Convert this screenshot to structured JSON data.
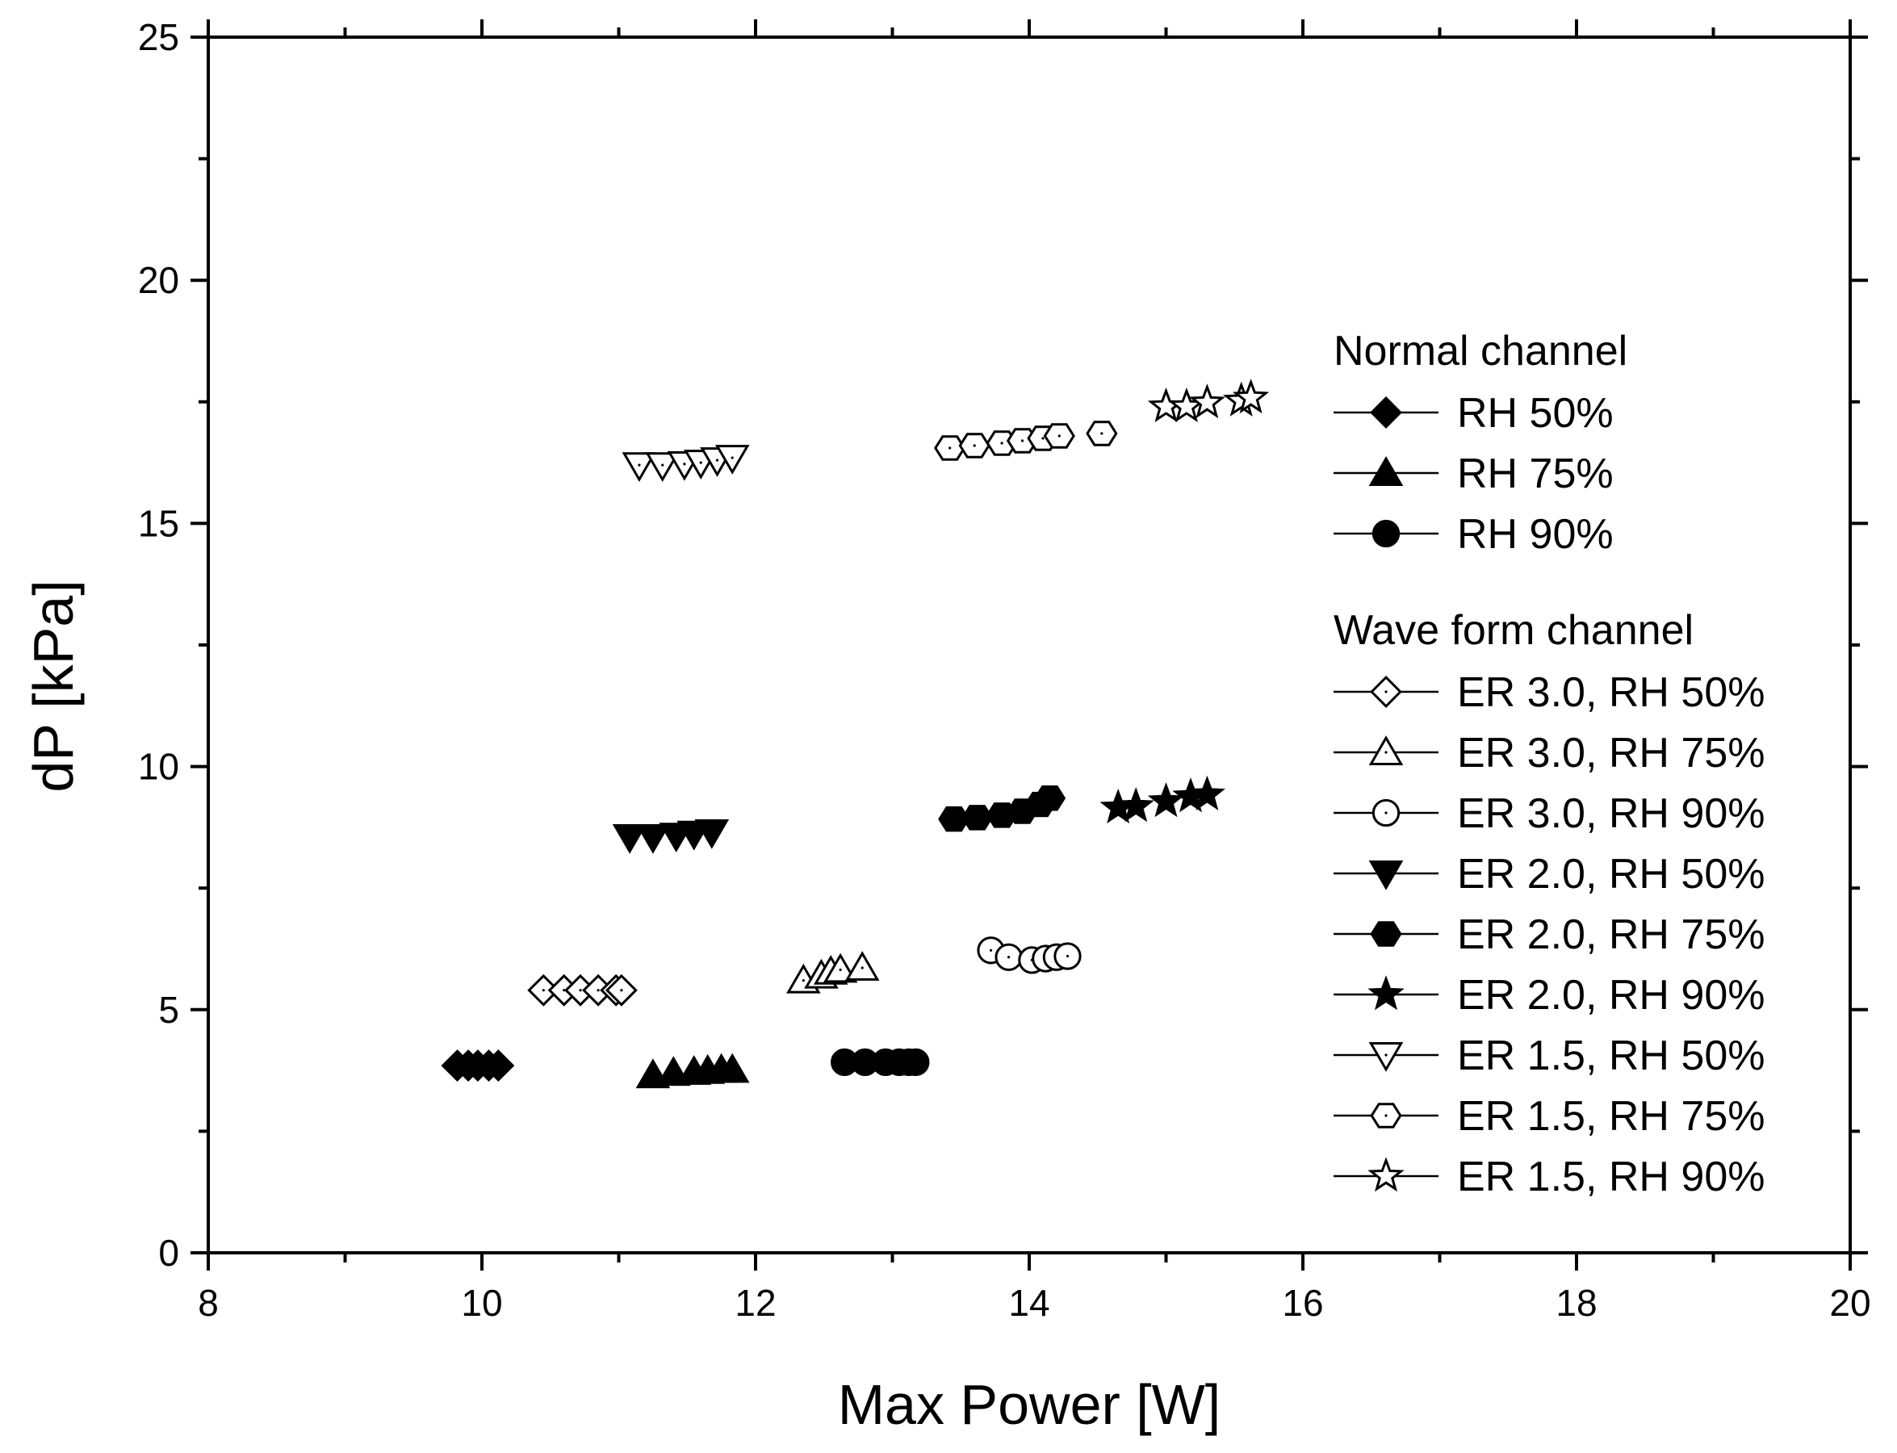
{
  "chart_data": {
    "type": "scatter",
    "xlabel": "Max Power [W]",
    "ylabel": "dP [kPa]",
    "xlim": [
      8,
      20
    ],
    "ylim": [
      0,
      25
    ],
    "x_ticks": [
      "8",
      "10",
      "12",
      "14",
      "16",
      "18",
      "20"
    ],
    "y_ticks": [
      "0",
      "5",
      "10",
      "15",
      "20",
      "25"
    ],
    "legend_groups": [
      {
        "title": "Normal channel"
      },
      {
        "title": "Wave form channel"
      }
    ],
    "series": [
      {
        "name": "RH 50%",
        "group": 0,
        "marker": "diamond",
        "filled": true,
        "points": [
          [
            9.82,
            3.85
          ],
          [
            9.9,
            3.85
          ],
          [
            9.97,
            3.85
          ],
          [
            10.05,
            3.85
          ],
          [
            10.12,
            3.85
          ]
        ]
      },
      {
        "name": "RH 75%",
        "group": 0,
        "marker": "triangle",
        "filled": true,
        "points": [
          [
            11.25,
            3.65
          ],
          [
            11.4,
            3.7
          ],
          [
            11.55,
            3.72
          ],
          [
            11.65,
            3.74
          ],
          [
            11.75,
            3.76
          ],
          [
            11.83,
            3.76
          ]
        ]
      },
      {
        "name": "RH 90%",
        "group": 0,
        "marker": "circle",
        "filled": true,
        "points": [
          [
            12.65,
            3.92
          ],
          [
            12.8,
            3.92
          ],
          [
            12.95,
            3.92
          ],
          [
            13.05,
            3.92
          ],
          [
            13.12,
            3.92
          ],
          [
            13.17,
            3.92
          ]
        ]
      },
      {
        "name": "ER 3.0, RH 50%",
        "group": 1,
        "marker": "diamond",
        "filled": false,
        "points": [
          [
            10.45,
            5.4
          ],
          [
            10.6,
            5.4
          ],
          [
            10.72,
            5.4
          ],
          [
            10.85,
            5.4
          ],
          [
            10.98,
            5.4
          ],
          [
            11.02,
            5.4
          ]
        ]
      },
      {
        "name": "ER 3.0, RH 75%",
        "group": 1,
        "marker": "triangle",
        "filled": false,
        "points": [
          [
            12.35,
            5.6
          ],
          [
            12.48,
            5.7
          ],
          [
            12.55,
            5.78
          ],
          [
            12.62,
            5.82
          ],
          [
            12.78,
            5.86
          ]
        ]
      },
      {
        "name": "ER 3.0, RH 90%",
        "group": 1,
        "marker": "circle",
        "filled": false,
        "points": [
          [
            13.72,
            6.22
          ],
          [
            13.85,
            6.08
          ],
          [
            14.02,
            6.02
          ],
          [
            14.12,
            6.05
          ],
          [
            14.2,
            6.08
          ],
          [
            14.28,
            6.1
          ]
        ]
      },
      {
        "name": "ER 2.0, RH 50%",
        "group": 1,
        "marker": "triangle-down",
        "filled": true,
        "points": [
          [
            11.08,
            8.55
          ],
          [
            11.25,
            8.55
          ],
          [
            11.42,
            8.58
          ],
          [
            11.55,
            8.62
          ],
          [
            11.68,
            8.65
          ]
        ]
      },
      {
        "name": "ER 2.0, RH 75%",
        "group": 1,
        "marker": "hexagon",
        "filled": true,
        "points": [
          [
            13.45,
            8.92
          ],
          [
            13.62,
            8.95
          ],
          [
            13.8,
            9.0
          ],
          [
            13.95,
            9.08
          ],
          [
            14.08,
            9.22
          ],
          [
            14.15,
            9.35
          ]
        ]
      },
      {
        "name": "ER 2.0, RH 90%",
        "group": 1,
        "marker": "star",
        "filled": true,
        "points": [
          [
            14.65,
            9.15
          ],
          [
            14.78,
            9.18
          ],
          [
            15.0,
            9.28
          ],
          [
            15.18,
            9.38
          ],
          [
            15.3,
            9.42
          ]
        ]
      },
      {
        "name": "ER 1.5, RH 50%",
        "group": 1,
        "marker": "triangle-down",
        "filled": false,
        "points": [
          [
            11.15,
            16.2
          ],
          [
            11.32,
            16.2
          ],
          [
            11.48,
            16.22
          ],
          [
            11.6,
            16.25
          ],
          [
            11.72,
            16.3
          ],
          [
            11.83,
            16.35
          ]
        ]
      },
      {
        "name": "ER 1.5, RH 75%",
        "group": 1,
        "marker": "hexagon",
        "filled": false,
        "points": [
          [
            13.42,
            16.55
          ],
          [
            13.6,
            16.6
          ],
          [
            13.8,
            16.65
          ],
          [
            13.95,
            16.7
          ],
          [
            14.1,
            16.75
          ],
          [
            14.22,
            16.8
          ],
          [
            14.53,
            16.85
          ]
        ]
      },
      {
        "name": "ER 1.5, RH 90%",
        "group": 1,
        "marker": "star",
        "filled": false,
        "points": [
          [
            15.0,
            17.4
          ],
          [
            15.15,
            17.4
          ],
          [
            15.3,
            17.48
          ],
          [
            15.55,
            17.52
          ],
          [
            15.62,
            17.58
          ]
        ]
      }
    ]
  }
}
